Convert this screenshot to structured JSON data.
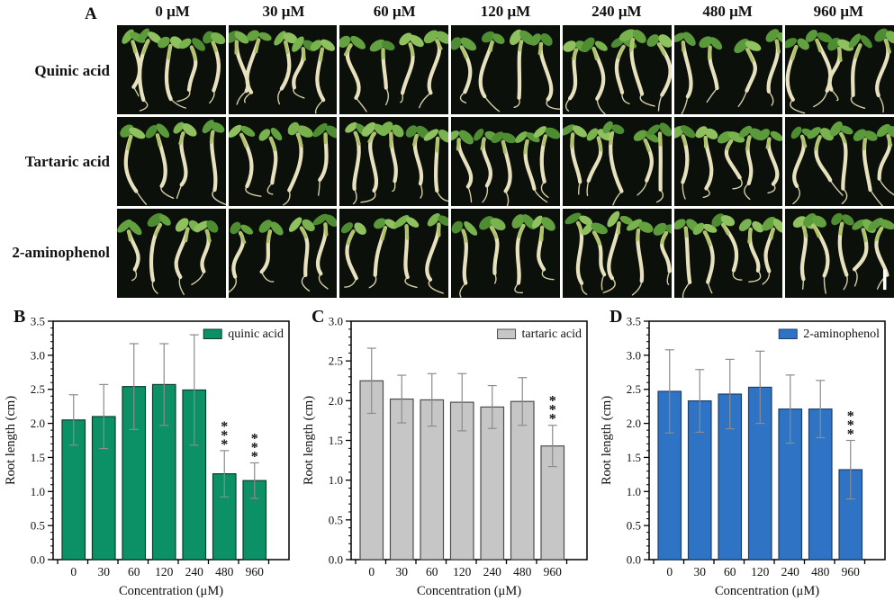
{
  "panel_a": {
    "label": "A",
    "column_headers": [
      "0 μM",
      "30 μM",
      "60 μM",
      "120 μM",
      "240 μM",
      "480 μM",
      "960 μM"
    ],
    "rows": [
      {
        "label": "Quinic acid"
      },
      {
        "label": "Tartaric acid"
      },
      {
        "label": "2-aminophenol"
      }
    ],
    "scale_bar": true
  },
  "chart_data": [
    {
      "type": "bar",
      "panel": "B",
      "legend": "quinic acid",
      "title": "",
      "xlabel": "Concentration (μM)",
      "ylabel": "Root length (cm)",
      "categories": [
        "0",
        "30",
        "60",
        "120",
        "240",
        "480",
        "960"
      ],
      "values": [
        2.05,
        2.1,
        2.54,
        2.57,
        2.49,
        1.26,
        1.16
      ],
      "errors": [
        0.37,
        0.47,
        0.63,
        0.6,
        0.81,
        0.34,
        0.26
      ],
      "significance": [
        "",
        "",
        "",
        "",
        "",
        "***",
        "***"
      ],
      "ylim": [
        0,
        3.5
      ],
      "ytick_step": 0.5,
      "yminor_step": 0.1,
      "grid": false,
      "legend_position": "top-right",
      "bar_color": "#0c9166",
      "bar_border": "#0a3d2c",
      "error_color": "#8c8c8c"
    },
    {
      "type": "bar",
      "panel": "C",
      "legend": "tartaric acid",
      "title": "",
      "xlabel": "Concentration (μM)",
      "ylabel": "Root length (cm)",
      "categories": [
        "0",
        "30",
        "60",
        "120",
        "240",
        "480",
        "960"
      ],
      "values": [
        2.25,
        2.02,
        2.01,
        1.98,
        1.92,
        1.99,
        1.43
      ],
      "errors": [
        0.41,
        0.3,
        0.33,
        0.36,
        0.27,
        0.3,
        0.26
      ],
      "significance": [
        "",
        "",
        "",
        "",
        "",
        "",
        "***"
      ],
      "ylim": [
        0,
        3.0
      ],
      "ytick_step": 0.5,
      "yminor_step": 0.1,
      "grid": false,
      "legend_position": "top-right",
      "bar_color": "#c6c6c6",
      "bar_border": "#4d4d4d",
      "error_color": "#8c8c8c"
    },
    {
      "type": "bar",
      "panel": "D",
      "legend": "2-aminophenol",
      "title": "",
      "xlabel": "Concentration (μM)",
      "ylabel": "Root length (cm)",
      "categories": [
        "0",
        "30",
        "60",
        "120",
        "240",
        "480",
        "960"
      ],
      "values": [
        2.47,
        2.33,
        2.43,
        2.53,
        2.21,
        2.21,
        1.32
      ],
      "errors": [
        0.61,
        0.46,
        0.51,
        0.53,
        0.5,
        0.42,
        0.43
      ],
      "significance": [
        "",
        "",
        "",
        "",
        "",
        "",
        "***"
      ],
      "ylim": [
        0,
        3.5
      ],
      "ytick_step": 0.5,
      "yminor_step": 0.1,
      "grid": false,
      "legend_position": "top-right",
      "bar_color": "#2f74c4",
      "bar_border": "#1b3f6e",
      "error_color": "#8c8c8c"
    }
  ]
}
